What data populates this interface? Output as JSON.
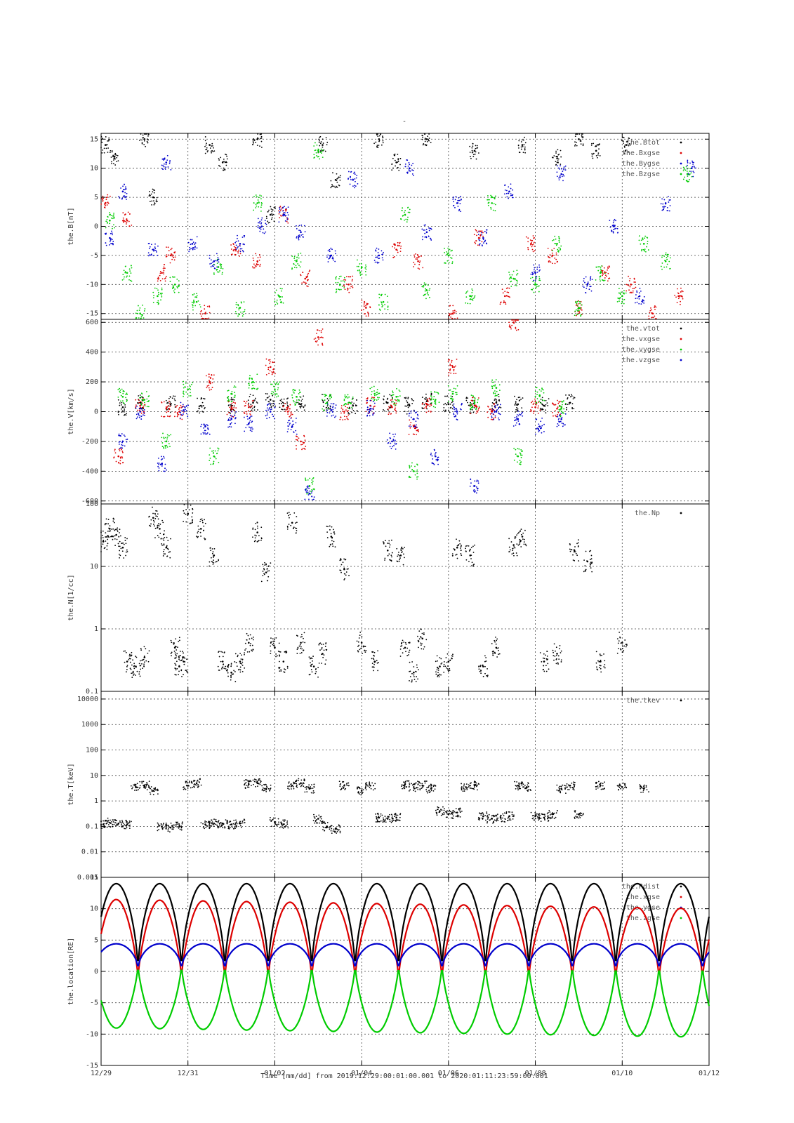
{
  "figure": {
    "title": "-",
    "x_axis_caption": "Time [mm/dd]  from 2019:12:29:00:01:00.001  to  2020:01:11:23:59:00.001",
    "x_ticks": [
      "12/29",
      "12/31",
      "01/02",
      "01/04",
      "01/06",
      "01/08",
      "01/10",
      "01/12"
    ],
    "x_range_days": [
      0,
      14
    ]
  },
  "colors": {
    "black": "#000000",
    "red": "#dd0000",
    "blue": "#0000cc",
    "green": "#00cc00",
    "grid": "#444444"
  },
  "chart_data": [
    {
      "type": "scatter",
      "panel": "B",
      "ylabel": "the.B[nT]",
      "ylim": [
        -16,
        16
      ],
      "yticks": [
        "15",
        "10",
        "5",
        "0",
        "-5",
        "-10",
        "-15"
      ],
      "ytick_values": [
        15,
        10,
        5,
        0,
        -5,
        -10,
        -15
      ],
      "scale": "linear",
      "grid": true,
      "legend_position": "top-right",
      "series": [
        {
          "name": "the.Btot",
          "color": "black",
          "x": [
            0.1,
            0.3,
            1.0,
            1.2,
            2.5,
            2.8,
            3.6,
            3.9,
            5.1,
            5.4,
            6.4,
            6.8,
            7.5,
            8.6,
            9.7,
            10.5,
            11.0,
            11.4,
            12.1
          ],
          "y": [
            14,
            12,
            15,
            5,
            14,
            11,
            15,
            2,
            14,
            8,
            15,
            11,
            15,
            13,
            14,
            12,
            15,
            13,
            14
          ]
        },
        {
          "name": "the.Bxgse",
          "color": "red",
          "x": [
            0.1,
            0.6,
            1.4,
            1.6,
            2.4,
            3.1,
            3.6,
            4.2,
            4.7,
            5.7,
            6.1,
            6.8,
            7.3,
            8.1,
            8.7,
            9.3,
            9.9,
            10.4,
            11.0,
            11.6,
            12.2,
            12.7,
            13.3
          ],
          "y": [
            4,
            1,
            -8,
            -5,
            -15,
            -4,
            -6,
            2,
            -9,
            -10,
            -14,
            -4,
            -6,
            -15,
            -2,
            -12,
            -3,
            -5,
            -14,
            -8,
            -10,
            -15,
            -12
          ]
        },
        {
          "name": "the.Bygse",
          "color": "blue",
          "x": [
            0.2,
            0.5,
            1.2,
            1.5,
            2.1,
            2.6,
            3.2,
            3.7,
            4.2,
            4.6,
            5.3,
            5.8,
            6.4,
            7.1,
            7.5,
            8.2,
            8.8,
            9.4,
            10.0,
            10.6,
            11.2,
            11.8,
            12.4,
            13.0,
            13.6
          ],
          "y": [
            -2,
            6,
            -4,
            11,
            -3,
            -6,
            -3,
            0,
            2,
            -1,
            -5,
            8,
            -5,
            10,
            -1,
            4,
            -2,
            6,
            -8,
            9,
            -10,
            0,
            -12,
            4,
            10
          ]
        },
        {
          "name": "the.Bzgse",
          "color": "green",
          "x": [
            0.2,
            0.6,
            0.9,
            1.3,
            1.7,
            2.2,
            2.7,
            3.2,
            3.6,
            4.1,
            4.5,
            5.0,
            5.5,
            6.0,
            6.5,
            7.0,
            7.5,
            8.0,
            8.5,
            9.0,
            9.5,
            10.0,
            10.5,
            11.0,
            11.5,
            12.0,
            12.5,
            13.0,
            13.5
          ],
          "y": [
            1,
            -8,
            -15,
            -12,
            -10,
            -13,
            -7,
            -14,
            4,
            -12,
            -6,
            13,
            -10,
            -7,
            -13,
            2,
            -11,
            -5,
            -12,
            4,
            -9,
            -10,
            -3,
            -14,
            -8,
            -12,
            -3,
            -6,
            9
          ]
        }
      ]
    },
    {
      "type": "scatter",
      "panel": "V",
      "ylabel": "the.V[km/s]",
      "ylim": [
        -620,
        620
      ],
      "yticks": [
        "600",
        "400",
        "200",
        "0",
        "-200",
        "-400",
        "-600"
      ],
      "ytick_values": [
        600,
        400,
        200,
        0,
        -200,
        -400,
        -600
      ],
      "scale": "linear",
      "grid": true,
      "legend_position": "top-right",
      "series": [
        {
          "name": "the.vtot",
          "color": "black",
          "x": [
            0.5,
            0.9,
            1.6,
            2.3,
            3.0,
            3.5,
            3.9,
            4.2,
            4.6,
            5.2,
            5.8,
            6.6,
            7.1,
            7.5,
            8.0,
            8.5,
            9.1,
            9.6,
            10.2,
            10.8
          ],
          "y": [
            30,
            60,
            50,
            40,
            40,
            60,
            80,
            40,
            50,
            60,
            40,
            60,
            40,
            70,
            50,
            40,
            60,
            50,
            40,
            60
          ]
        },
        {
          "name": "the.vxgse",
          "color": "red",
          "x": [
            0.4,
            0.9,
            1.5,
            1.8,
            2.5,
            3.0,
            3.4,
            3.9,
            4.3,
            4.6,
            5.0,
            5.6,
            6.2,
            6.7,
            7.2,
            7.5,
            8.1,
            8.6,
            9.0,
            9.5,
            10.0,
            10.5
          ],
          "y": [
            -300,
            40,
            20,
            0,
            200,
            20,
            30,
            300,
            0,
            -200,
            500,
            0,
            40,
            30,
            -100,
            50,
            300,
            40,
            0,
            600,
            30,
            20
          ]
        },
        {
          "name": "the.vygse",
          "color": "green",
          "x": [
            0.5,
            1.0,
            1.5,
            2.0,
            2.6,
            3.0,
            3.5,
            4.0,
            4.5,
            4.8,
            5.2,
            5.7,
            6.3,
            6.8,
            7.2,
            7.7,
            8.1,
            8.6,
            9.1,
            9.6,
            10.1,
            10.6
          ],
          "y": [
            100,
            80,
            -200,
            150,
            -300,
            120,
            200,
            150,
            100,
            -500,
            60,
            60,
            120,
            100,
            -400,
            80,
            120,
            60,
            160,
            -300,
            110,
            20
          ]
        },
        {
          "name": "the.vzgse",
          "color": "blue",
          "x": [
            0.5,
            0.9,
            1.4,
            1.9,
            2.4,
            3.0,
            3.4,
            3.9,
            4.4,
            4.8,
            5.3,
            6.2,
            6.7,
            7.2,
            7.7,
            8.2,
            8.6,
            9.1,
            9.6,
            10.1,
            10.6
          ],
          "y": [
            -200,
            0,
            -350,
            10,
            -100,
            -50,
            -80,
            0,
            -100,
            -550,
            10,
            20,
            -200,
            -50,
            -300,
            0,
            -500,
            0,
            -50,
            -100,
            -50
          ]
        }
      ]
    },
    {
      "type": "scatter",
      "panel": "N",
      "ylabel": "the.N[1/cc]",
      "ylim": [
        0.1,
        100
      ],
      "yticks": [
        "100",
        "10",
        "1",
        "0.1"
      ],
      "ytick_values": [
        100,
        10,
        1,
        0.1
      ],
      "scale": "log",
      "grid": true,
      "legend_position": "top-right",
      "series": [
        {
          "name": "the.Np",
          "color": "black",
          "x": [
            0.05,
            0.2,
            0.35,
            0.5,
            0.6,
            0.8,
            1.0,
            1.2,
            1.35,
            1.5,
            1.7,
            1.8,
            1.9,
            2.0,
            2.3,
            2.6,
            2.8,
            3.0,
            3.2,
            3.4,
            3.6,
            3.8,
            4.0,
            4.2,
            4.4,
            4.6,
            4.9,
            5.1,
            5.3,
            5.6,
            6.0,
            6.3,
            6.6,
            6.9,
            7.0,
            7.2,
            7.4,
            7.8,
            8.0,
            8.2,
            8.5,
            8.8,
            9.1,
            9.5,
            9.7,
            10.2,
            10.5,
            10.9,
            11.2,
            11.5,
            12.0
          ],
          "y": [
            25,
            40,
            32,
            20,
            0.3,
            0.25,
            0.35,
            60,
            40,
            20,
            0.5,
            0.25,
            0.3,
            70,
            40,
            15,
            0.3,
            0.2,
            0.3,
            0.6,
            35,
            8,
            0.5,
            0.3,
            50,
            0.6,
            0.25,
            0.4,
            30,
            9,
            0.6,
            0.3,
            18,
            15,
            0.5,
            0.2,
            0.7,
            0.25,
            0.3,
            20,
            15,
            0.25,
            0.5,
            22,
            30,
            0.3,
            0.4,
            18,
            12,
            0.3,
            0.6
          ]
        }
      ]
    },
    {
      "type": "scatter",
      "panel": "T",
      "ylabel": "the.T[keV]",
      "ylim": [
        0.001,
        20000
      ],
      "yticks": [
        "10000",
        "1000",
        "100",
        "10",
        "1",
        "0.1",
        "0.01",
        "0.001"
      ],
      "ytick_values": [
        10000,
        1000,
        100,
        10,
        1,
        0.1,
        0.01,
        0.001
      ],
      "scale": "log",
      "grid": true,
      "legend_position": "top-right",
      "series": [
        {
          "name": "the.tkev",
          "color": "black",
          "x": [
            0.05,
            0.2,
            0.4,
            0.6,
            0.8,
            1.0,
            1.2,
            1.4,
            1.6,
            1.8,
            2.0,
            2.2,
            2.4,
            2.6,
            2.8,
            3.0,
            3.2,
            3.4,
            3.6,
            3.8,
            4.0,
            4.2,
            4.4,
            4.6,
            4.8,
            5.0,
            5.2,
            5.4,
            5.6,
            6.0,
            6.2,
            6.4,
            6.6,
            6.8,
            7.0,
            7.2,
            7.4,
            7.6,
            7.8,
            8.0,
            8.2,
            8.4,
            8.6,
            8.8,
            9.0,
            9.2,
            9.4,
            9.6,
            9.8,
            10.0,
            10.2,
            10.4,
            10.6,
            10.8,
            11.0,
            11.5,
            12.0,
            12.5
          ],
          "y": [
            0.12,
            0.14,
            0.13,
            0.12,
            3.5,
            4.0,
            2.5,
            0.1,
            0.09,
            0.1,
            4.0,
            5.0,
            0.12,
            0.13,
            0.13,
            0.12,
            0.13,
            4.5,
            5.0,
            3.0,
            0.15,
            0.12,
            4.0,
            5.0,
            3.0,
            0.2,
            0.1,
            0.08,
            4.0,
            2.5,
            4.0,
            0.22,
            0.2,
            0.22,
            4.5,
            3.5,
            4.0,
            3.0,
            0.4,
            0.3,
            0.35,
            3.5,
            4.0,
            0.25,
            0.2,
            0.22,
            0.25,
            4.0,
            3.5,
            0.25,
            0.22,
            0.3,
            3.0,
            4.0,
            0.3,
            4.0,
            3.5,
            3.0
          ]
        }
      ]
    },
    {
      "type": "line",
      "panel": "location",
      "ylabel": "the.location[RE]",
      "ylim": [
        -15,
        15
      ],
      "yticks": [
        "15",
        "10",
        "5",
        "0",
        "-5",
        "-10",
        "-15"
      ],
      "ytick_values": [
        15,
        10,
        5,
        0,
        -5,
        -10,
        -15
      ],
      "scale": "linear",
      "grid": true,
      "legend_position": "top-right",
      "orbit_period_days": 1.0,
      "series": [
        {
          "name": "the.Rdist",
          "color": "black",
          "apogee": 14,
          "perigee": 0
        },
        {
          "name": "the.xgse",
          "color": "red",
          "apogee_start": 11.5,
          "apogee_end": 10.0
        },
        {
          "name": "the.ygse",
          "color": "blue",
          "apogee": 4.4
        },
        {
          "name": "the.zgse",
          "color": "green",
          "min_start": -9.0,
          "min_end": -10.5
        }
      ]
    }
  ]
}
